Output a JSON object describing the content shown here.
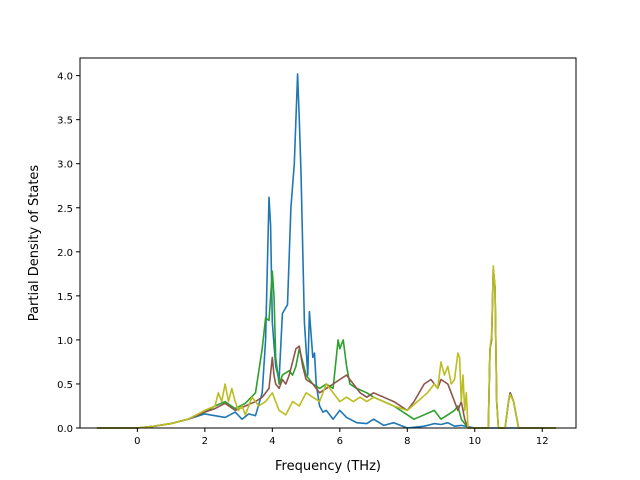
{
  "chart_data": {
    "type": "line",
    "title": "",
    "xlabel": "Frequency (THz)",
    "ylabel": "Partial Density of States",
    "xlim": [
      -1.7,
      13.0
    ],
    "ylim": [
      0.0,
      4.2
    ],
    "xticks": [
      0,
      2,
      4,
      6,
      8,
      10,
      12
    ],
    "xtick_labels": [
      "0",
      "2",
      "4",
      "6",
      "8",
      "10",
      "12"
    ],
    "yticks": [
      0.0,
      0.5,
      1.0,
      1.5,
      2.0,
      2.5,
      3.0,
      3.5,
      4.0
    ],
    "ytick_labels": [
      "0.0",
      "0.5",
      "1.0",
      "1.5",
      "2.0",
      "2.5",
      "3.0",
      "3.5",
      "4.0"
    ],
    "grid": false,
    "legend": "none",
    "series": [
      {
        "color": "#1f77b4",
        "x": [
          -1.2,
          0,
          0.5,
          1,
          1.5,
          2,
          2.3,
          2.6,
          2.9,
          3.1,
          3.3,
          3.5,
          3.7,
          3.8,
          3.9,
          3.95,
          4.0,
          4.1,
          4.2,
          4.3,
          4.45,
          4.55,
          4.65,
          4.75,
          4.8,
          4.85,
          4.95,
          5.05,
          5.1,
          5.2,
          5.25,
          5.3,
          5.4,
          5.5,
          5.6,
          5.8,
          6.0,
          6.2,
          6.5,
          6.8,
          7.0,
          7.3,
          7.6,
          8.0,
          8.5,
          8.8,
          9.0,
          9.2,
          9.4,
          9.6,
          10.0,
          10.5,
          11.0,
          12.4
        ],
        "values": [
          0,
          0,
          0.02,
          0.05,
          0.1,
          0.16,
          0.14,
          0.12,
          0.18,
          0.1,
          0.16,
          0.14,
          0.4,
          1.0,
          2.62,
          2.3,
          1.2,
          0.7,
          0.55,
          1.3,
          1.4,
          2.5,
          3.0,
          4.02,
          3.5,
          2.9,
          1.2,
          0.6,
          1.32,
          0.8,
          0.85,
          0.5,
          0.25,
          0.18,
          0.2,
          0.1,
          0.2,
          0.12,
          0.06,
          0.05,
          0.1,
          0.03,
          0.06,
          0.0,
          0.02,
          0.05,
          0.04,
          0.06,
          0.02,
          0.03,
          0.0,
          0.0,
          0.0,
          0.0
        ]
      },
      {
        "color": "#2ca02c",
        "x": [
          -1.2,
          0,
          0.5,
          1,
          1.5,
          2,
          2.3,
          2.6,
          2.9,
          3.2,
          3.5,
          3.7,
          3.8,
          3.9,
          4.0,
          4.05,
          4.1,
          4.2,
          4.3,
          4.5,
          4.6,
          4.7,
          4.8,
          4.9,
          5.0,
          5.2,
          5.4,
          5.6,
          5.8,
          5.95,
          6.0,
          6.1,
          6.2,
          6.3,
          6.5,
          6.8,
          7.0,
          7.3,
          7.6,
          8.0,
          8.2,
          8.5,
          8.8,
          9.0,
          9.2,
          9.4,
          9.5,
          9.6,
          9.7,
          9.8,
          10.0,
          10.4,
          10.45,
          10.5,
          10.55,
          10.6,
          10.65,
          10.7,
          10.9,
          11.0,
          11.05,
          11.15,
          11.3,
          11.5,
          12.4
        ],
        "values": [
          0,
          0,
          0.02,
          0.05,
          0.1,
          0.18,
          0.25,
          0.3,
          0.22,
          0.28,
          0.4,
          0.9,
          1.25,
          1.22,
          1.78,
          1.5,
          0.8,
          0.5,
          0.6,
          0.65,
          0.6,
          0.7,
          0.9,
          0.75,
          0.6,
          0.5,
          0.45,
          0.5,
          0.45,
          1.0,
          0.9,
          1.0,
          0.7,
          0.5,
          0.45,
          0.4,
          0.35,
          0.3,
          0.25,
          0.15,
          0.1,
          0.15,
          0.2,
          0.1,
          0.15,
          0.2,
          0.25,
          0.1,
          0.05,
          0.0,
          0.0,
          0.0,
          0.9,
          1.0,
          1.8,
          1.6,
          0.3,
          0.0,
          0.0,
          0.3,
          0.4,
          0.3,
          0.0,
          0.0,
          0.0
        ]
      },
      {
        "color": "#8c564b",
        "x": [
          -1.2,
          0,
          0.5,
          1,
          1.5,
          2,
          2.3,
          2.6,
          2.9,
          3.2,
          3.5,
          3.7,
          3.9,
          4.0,
          4.05,
          4.1,
          4.2,
          4.3,
          4.4,
          4.5,
          4.6,
          4.7,
          4.8,
          4.9,
          5.0,
          5.2,
          5.4,
          5.6,
          5.8,
          6.0,
          6.2,
          6.4,
          6.6,
          6.8,
          7.0,
          7.3,
          7.6,
          8.0,
          8.2,
          8.5,
          8.7,
          8.9,
          9.0,
          9.2,
          9.3,
          9.5,
          9.6,
          9.7,
          9.8,
          10.0,
          10.4,
          10.45,
          10.5,
          10.55,
          10.6,
          10.65,
          10.7,
          10.9,
          11.0,
          11.05,
          11.15,
          11.3,
          11.5,
          12.4
        ],
        "values": [
          0,
          0,
          0.02,
          0.05,
          0.1,
          0.18,
          0.22,
          0.28,
          0.2,
          0.25,
          0.3,
          0.35,
          0.45,
          0.8,
          0.6,
          0.5,
          0.45,
          0.55,
          0.5,
          0.6,
          0.75,
          0.9,
          0.93,
          0.7,
          0.55,
          0.5,
          0.4,
          0.45,
          0.5,
          0.55,
          0.6,
          0.5,
          0.4,
          0.35,
          0.4,
          0.35,
          0.3,
          0.2,
          0.3,
          0.5,
          0.55,
          0.45,
          0.55,
          0.5,
          0.4,
          0.2,
          0.3,
          0.1,
          0.0,
          0.0,
          0.0,
          0.9,
          1.0,
          1.8,
          1.6,
          0.3,
          0.0,
          0.0,
          0.3,
          0.4,
          0.3,
          0.0,
          0.0,
          0.0
        ]
      },
      {
        "color": "#bcbd22",
        "x": [
          -1.2,
          0,
          0.5,
          1,
          1.5,
          2,
          2.3,
          2.4,
          2.5,
          2.6,
          2.7,
          2.8,
          2.9,
          3.0,
          3.1,
          3.2,
          3.4,
          3.6,
          3.8,
          4.0,
          4.2,
          4.4,
          4.6,
          4.8,
          5.0,
          5.2,
          5.4,
          5.6,
          5.8,
          6.0,
          6.2,
          6.4,
          6.6,
          6.8,
          7.0,
          7.3,
          7.6,
          8.0,
          8.3,
          8.6,
          8.8,
          8.9,
          9.0,
          9.1,
          9.2,
          9.3,
          9.4,
          9.5,
          9.55,
          9.6,
          9.65,
          9.7,
          9.75,
          9.8,
          10.0,
          10.4,
          10.45,
          10.5,
          10.55,
          10.6,
          10.65,
          10.7,
          10.9,
          11.0,
          11.05,
          11.15,
          11.3,
          11.5,
          12.4
        ],
        "values": [
          0,
          0,
          0.02,
          0.05,
          0.1,
          0.2,
          0.25,
          0.4,
          0.3,
          0.5,
          0.3,
          0.45,
          0.3,
          0.2,
          0.25,
          0.15,
          0.35,
          0.25,
          0.3,
          0.4,
          0.2,
          0.15,
          0.3,
          0.25,
          0.4,
          0.35,
          0.3,
          0.5,
          0.4,
          0.3,
          0.35,
          0.3,
          0.35,
          0.3,
          0.35,
          0.3,
          0.25,
          0.2,
          0.3,
          0.4,
          0.5,
          0.45,
          0.75,
          0.6,
          0.7,
          0.5,
          0.55,
          0.85,
          0.8,
          0.3,
          0.6,
          0.2,
          0.4,
          0.0,
          0.0,
          0.0,
          0.9,
          1.05,
          1.84,
          1.6,
          0.3,
          0.0,
          0.0,
          0.3,
          0.38,
          0.3,
          0.0,
          0.0,
          0.0
        ]
      }
    ]
  }
}
